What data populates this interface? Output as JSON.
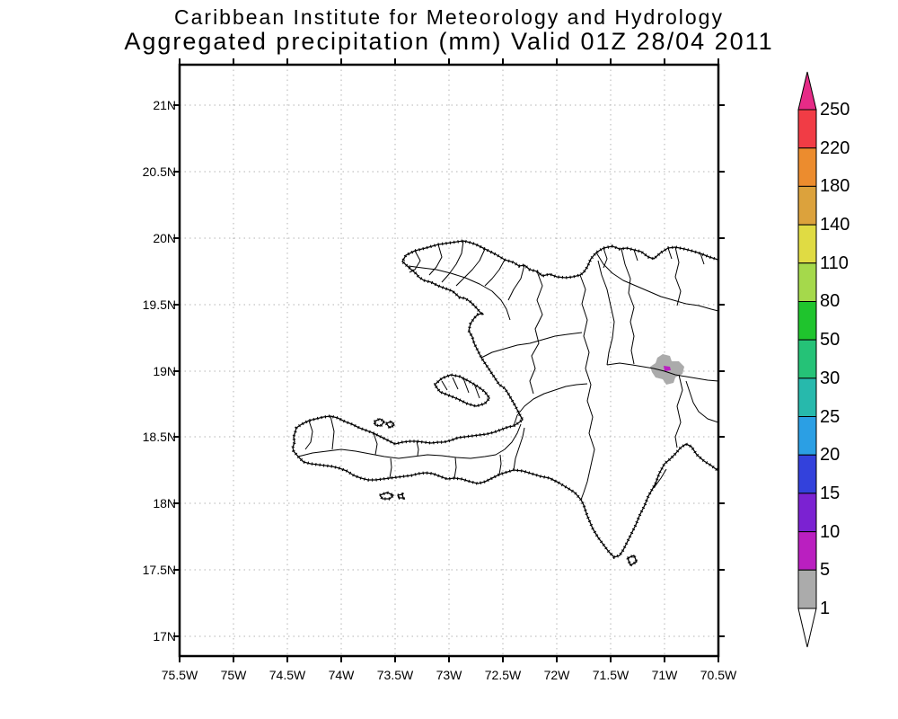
{
  "title": {
    "line1": "Caribbean Institute for Meteorology and Hydrology",
    "line2": "Aggregated precipitation (mm) Valid 01Z 28/04 2011"
  },
  "axes": {
    "lat_ticks": [
      "21N",
      "20.5N",
      "20N",
      "19.5N",
      "19N",
      "18.5N",
      "18N",
      "17.5N",
      "17N"
    ],
    "lon_ticks": [
      "75.5W",
      "75W",
      "74.5W",
      "74W",
      "73.5W",
      "73W",
      "72.5W",
      "72W",
      "71.5W",
      "71W",
      "70.5W"
    ]
  },
  "colorbar": {
    "labels": [
      "250",
      "220",
      "180",
      "140",
      "110",
      "80",
      "50",
      "30",
      "25",
      "20",
      "15",
      "10",
      "5",
      "1"
    ],
    "segments": [
      {
        "range": "> 250",
        "color": "#E62B87",
        "shape": "arrow-up"
      },
      {
        "range": "220-250",
        "color": "#F13C45"
      },
      {
        "range": "180-220",
        "color": "#EC8C2E"
      },
      {
        "range": "140-180",
        "color": "#DCA23C"
      },
      {
        "range": "110-140",
        "color": "#E0DB43"
      },
      {
        "range": "80-110",
        "color": "#A5D94B"
      },
      {
        "range": "50-80",
        "color": "#1FC42D"
      },
      {
        "range": "30-50",
        "color": "#25C277"
      },
      {
        "range": "25-30",
        "color": "#27B9AC"
      },
      {
        "range": "20-25",
        "color": "#2B9FE4"
      },
      {
        "range": "15-20",
        "color": "#3341DC"
      },
      {
        "range": "10-15",
        "color": "#7B22D2"
      },
      {
        "range": "5-10",
        "color": "#BA1FC0"
      },
      {
        "range": "1-5",
        "color": "#ABABAB"
      },
      {
        "range": "< 1",
        "color": "#FFFFFF",
        "shape": "arrow-down"
      }
    ]
  },
  "chart_data": {
    "type": "heatmap",
    "title": "Aggregated precipitation (mm) Valid 01Z 28/04 2011",
    "institution": "Caribbean Institute for Meteorology and Hydrology",
    "region": "Hispaniola (Haiti and Dominican Republic)",
    "units": "mm",
    "lon_range": [
      "75.5W",
      "70.5W"
    ],
    "lat_range": [
      "17N",
      "21N"
    ],
    "graticule": "0.5 degree dotted grid",
    "legend_thresholds_mm": [
      1,
      5,
      10,
      15,
      20,
      25,
      30,
      50,
      80,
      110,
      140,
      180,
      220,
      250
    ],
    "data_regions": [
      {
        "value": "1-5 mm",
        "color": "#ABABAB",
        "location": "~71.0W, 19.0N",
        "description": "small gray precipitation patch in central Dominican Republic"
      },
      {
        "value": "5-10 mm",
        "color": "#BA1FC0",
        "location": "~71.05W, 19.05N",
        "description": "tiny magenta spot inside the gray patch"
      }
    ]
  }
}
